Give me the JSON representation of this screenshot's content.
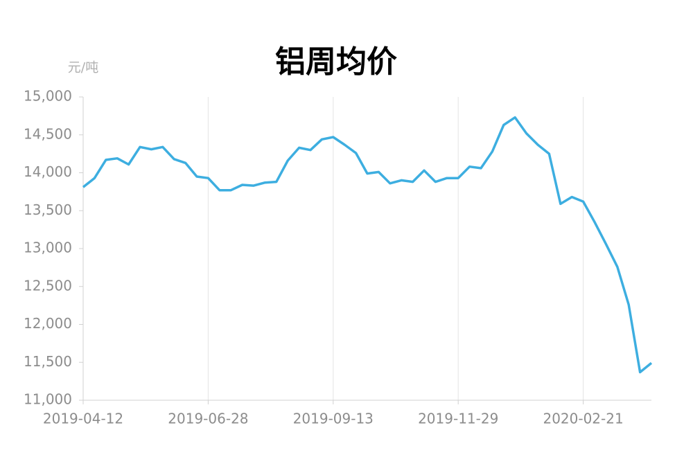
{
  "chart_data": {
    "type": "line",
    "title": "铝周均价",
    "y_label": "元/吨",
    "categories": [
      "2019-04-12",
      null,
      null,
      null,
      null,
      null,
      null,
      null,
      null,
      null,
      null,
      "2019-06-28",
      null,
      null,
      null,
      null,
      null,
      null,
      null,
      null,
      null,
      null,
      "2019-09-13",
      null,
      null,
      null,
      null,
      null,
      null,
      null,
      null,
      null,
      null,
      "2019-11-29",
      null,
      null,
      null,
      null,
      null,
      null,
      null,
      null,
      null,
      null,
      "2020-02-21",
      null,
      null,
      null,
      null,
      null,
      null
    ],
    "series": [
      {
        "name": "铝周均价",
        "color": "#3daee0",
        "values": [
          13810,
          13930,
          14170,
          14190,
          14110,
          14340,
          14310,
          14340,
          14180,
          14130,
          13950,
          13930,
          13770,
          13770,
          13840,
          13830,
          13870,
          13880,
          14160,
          14330,
          14300,
          14440,
          14470,
          14370,
          14260,
          13990,
          14010,
          13860,
          13900,
          13880,
          14030,
          13880,
          13930,
          13930,
          14080,
          14060,
          14280,
          14630,
          14730,
          14520,
          14370,
          14250,
          13590,
          13680,
          13620,
          13350,
          13060,
          12760,
          12260,
          11370,
          11490
        ]
      }
    ],
    "ylim": [
      11000,
      15000
    ],
    "yticks": [
      {
        "value": 11000,
        "label": "11,000"
      },
      {
        "value": 11500,
        "label": "11,500"
      },
      {
        "value": 12000,
        "label": "12,000"
      },
      {
        "value": 12500,
        "label": "12,500"
      },
      {
        "value": 13000,
        "label": "13,000"
      },
      {
        "value": 13500,
        "label": "13,500"
      },
      {
        "value": 14000,
        "label": "14,000"
      },
      {
        "value": 14500,
        "label": "14,500"
      },
      {
        "value": 15000,
        "label": "15,000"
      }
    ],
    "grid": true
  }
}
